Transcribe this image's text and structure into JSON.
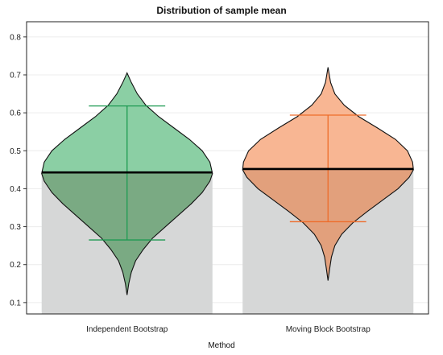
{
  "chart_data": {
    "type": "violin",
    "title": "Distribution of sample mean",
    "xlabel": "Method",
    "ylabel": "",
    "ylim": [
      0.07,
      0.84
    ],
    "yticks": [
      0.1,
      0.2,
      0.3,
      0.4,
      0.5,
      0.6,
      0.7,
      0.8
    ],
    "ytick_labels": [
      "0.1",
      "0.2",
      "0.3",
      "0.4",
      "0.5",
      "0.6",
      "0.7",
      "0.8"
    ],
    "grid": true,
    "categories": [
      "Independent Bootstrap",
      "Moving Block Bootstrap"
    ],
    "series": [
      {
        "category": "Independent Bootstrap",
        "mean": 0.443,
        "ci_low": 0.265,
        "ci_high": 0.618,
        "min": 0.12,
        "max": 0.705,
        "fill_color": "#8bcfa4",
        "dark_fill_color": "#7aaa83",
        "interval_color": "#1e9a52",
        "density": [
          [
            0.12,
            0.0
          ],
          [
            0.15,
            0.02
          ],
          [
            0.18,
            0.05
          ],
          [
            0.21,
            0.1
          ],
          [
            0.24,
            0.19
          ],
          [
            0.27,
            0.3
          ],
          [
            0.3,
            0.45
          ],
          [
            0.33,
            0.6
          ],
          [
            0.36,
            0.75
          ],
          [
            0.39,
            0.88
          ],
          [
            0.42,
            0.97
          ],
          [
            0.44,
            1.0
          ],
          [
            0.47,
            0.97
          ],
          [
            0.5,
            0.88
          ],
          [
            0.53,
            0.73
          ],
          [
            0.56,
            0.55
          ],
          [
            0.59,
            0.37
          ],
          [
            0.62,
            0.22
          ],
          [
            0.65,
            0.12
          ],
          [
            0.68,
            0.05
          ],
          [
            0.705,
            0.0
          ]
        ]
      },
      {
        "category": "Moving Block Bootstrap",
        "mean": 0.452,
        "ci_low": 0.313,
        "ci_high": 0.594,
        "min": 0.158,
        "max": 0.72,
        "fill_color": "#f8b693",
        "dark_fill_color": "#e2a07c",
        "interval_color": "#ee6c2a",
        "density": [
          [
            0.158,
            0.0
          ],
          [
            0.19,
            0.02
          ],
          [
            0.22,
            0.04
          ],
          [
            0.25,
            0.08
          ],
          [
            0.28,
            0.16
          ],
          [
            0.31,
            0.29
          ],
          [
            0.34,
            0.46
          ],
          [
            0.37,
            0.64
          ],
          [
            0.4,
            0.82
          ],
          [
            0.43,
            0.95
          ],
          [
            0.45,
            1.0
          ],
          [
            0.47,
            0.99
          ],
          [
            0.5,
            0.93
          ],
          [
            0.53,
            0.79
          ],
          [
            0.56,
            0.58
          ],
          [
            0.59,
            0.36
          ],
          [
            0.62,
            0.19
          ],
          [
            0.65,
            0.08
          ],
          [
            0.68,
            0.03
          ],
          [
            0.72,
            0.0
          ]
        ]
      }
    ]
  }
}
